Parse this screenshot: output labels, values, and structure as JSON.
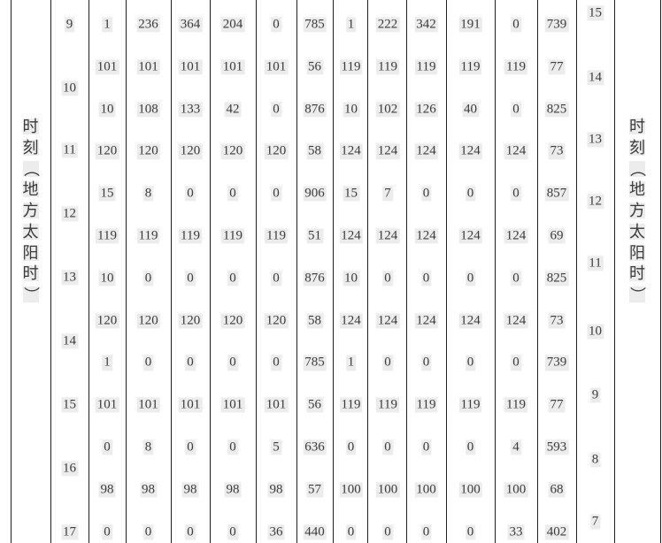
{
  "colors": {
    "text": "#3a3a3a",
    "grid_line": "#1e1e1e",
    "scan_artifact_bg": "#ececec",
    "page_bg": "#ffffff"
  },
  "table": {
    "left_label_text": "时刻（地方太阳时）",
    "right_label_text": "时刻（地方太阳时）",
    "left_label": [
      "时",
      "刻",
      "（",
      "地",
      "方",
      "太",
      "阳",
      "时",
      "）"
    ],
    "right_label": [
      "时",
      "刻",
      "（",
      "地",
      "方",
      "太",
      "阳",
      "时",
      "）"
    ],
    "left_hours": [
      "9",
      "10",
      "11",
      "12",
      "13",
      "14",
      "15",
      "16",
      "17"
    ],
    "right_hours": [
      "15",
      "14",
      "13",
      "12",
      "11",
      "10",
      "9",
      "8",
      "7"
    ],
    "rows": [
      {
        "values": [
          "1",
          "236",
          "364",
          "204",
          "0",
          "785",
          "1",
          "222",
          "342",
          "191",
          "0",
          "739"
        ]
      },
      {
        "values": [
          "101",
          "101",
          "101",
          "101",
          "101",
          "56",
          "119",
          "119",
          "119",
          "119",
          "119",
          "77"
        ]
      },
      {
        "values": [
          "10",
          "108",
          "133",
          "42",
          "0",
          "876",
          "10",
          "102",
          "126",
          "40",
          "0",
          "825"
        ]
      },
      {
        "values": [
          "120",
          "120",
          "120",
          "120",
          "120",
          "58",
          "124",
          "124",
          "124",
          "124",
          "124",
          "73"
        ]
      },
      {
        "values": [
          "15",
          "8",
          "0",
          "0",
          "0",
          "906",
          "15",
          "7",
          "0",
          "0",
          "0",
          "857"
        ]
      },
      {
        "values": [
          "119",
          "119",
          "119",
          "119",
          "119",
          "51",
          "124",
          "124",
          "124",
          "124",
          "124",
          "69"
        ]
      },
      {
        "values": [
          "10",
          "0",
          "0",
          "0",
          "0",
          "876",
          "10",
          "0",
          "0",
          "0",
          "0",
          "825"
        ]
      },
      {
        "values": [
          "120",
          "120",
          "120",
          "120",
          "120",
          "58",
          "124",
          "124",
          "124",
          "124",
          "124",
          "73"
        ]
      },
      {
        "values": [
          "1",
          "0",
          "0",
          "0",
          "0",
          "785",
          "1",
          "0",
          "0",
          "0",
          "0",
          "739"
        ]
      },
      {
        "values": [
          "101",
          "101",
          "101",
          "101",
          "101",
          "56",
          "119",
          "119",
          "119",
          "119",
          "119",
          "77"
        ]
      },
      {
        "values": [
          "0",
          "8",
          "0",
          "0",
          "5",
          "636",
          "0",
          "0",
          "0",
          "0",
          "4",
          "593"
        ]
      },
      {
        "values": [
          "98",
          "98",
          "98",
          "98",
          "98",
          "57",
          "100",
          "100",
          "100",
          "100",
          "100",
          "68"
        ]
      },
      {
        "values": [
          "0",
          "0",
          "0",
          "0",
          "36",
          "440",
          "0",
          "0",
          "0",
          "0",
          "33",
          "402"
        ]
      }
    ]
  }
}
